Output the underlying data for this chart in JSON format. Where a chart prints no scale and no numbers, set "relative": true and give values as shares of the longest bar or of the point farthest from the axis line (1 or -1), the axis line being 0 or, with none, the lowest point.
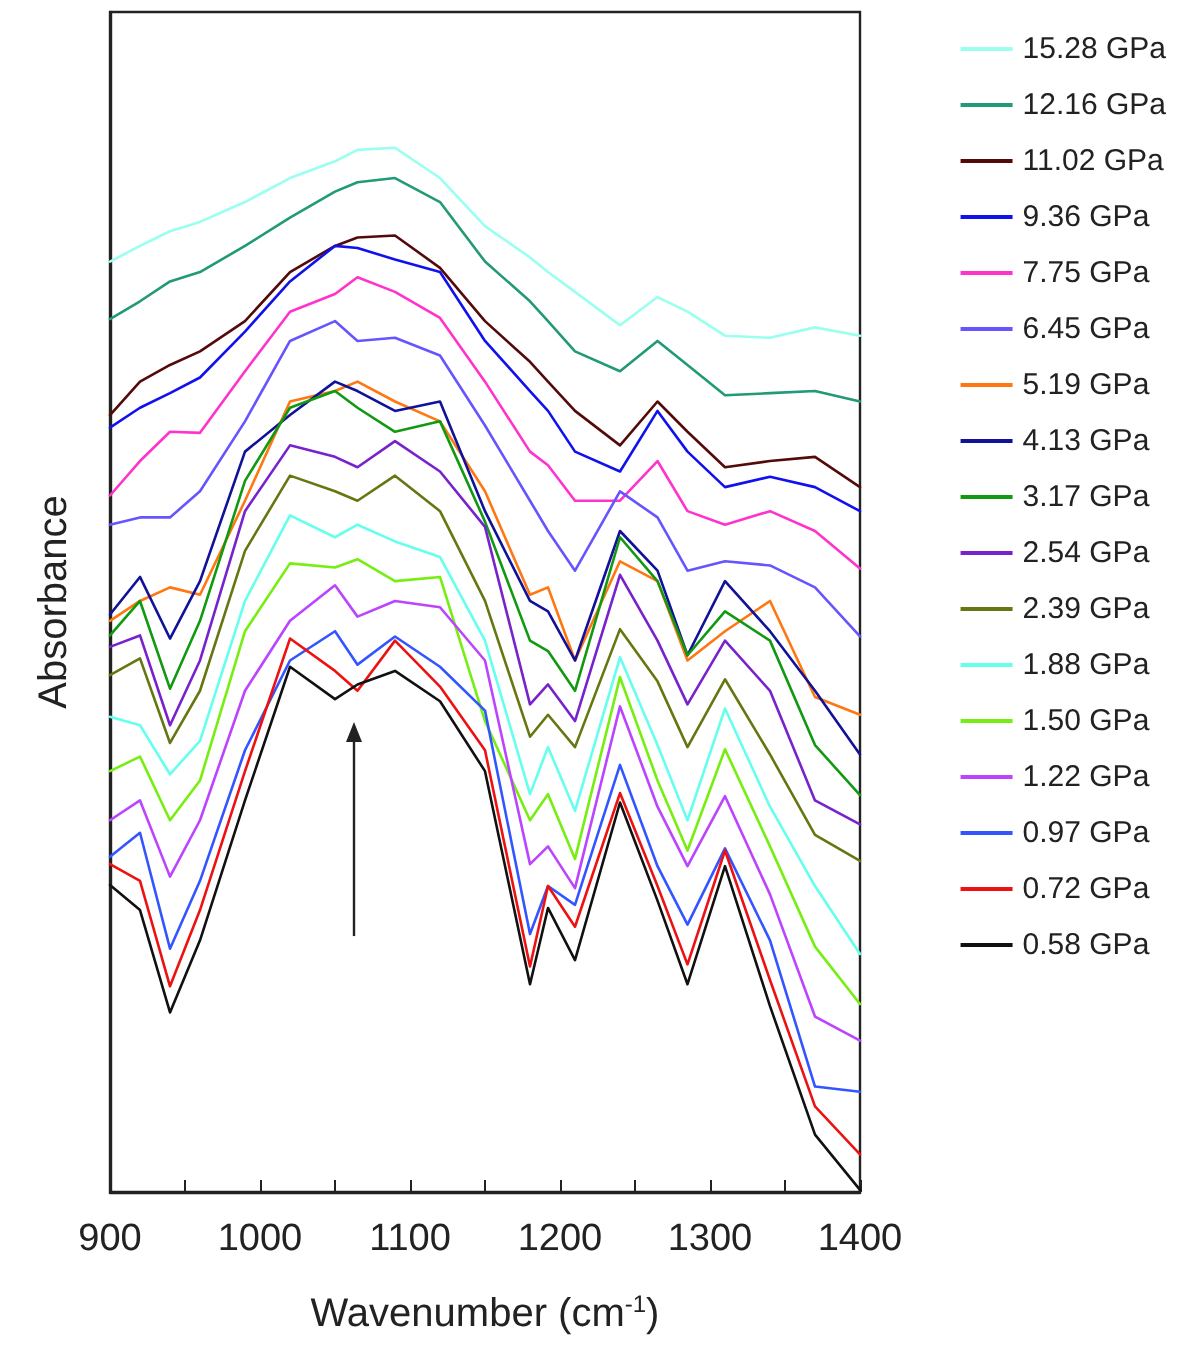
{
  "chart_data": {
    "type": "line",
    "relative": true,
    "xlabel": "Wavenumber (cm$^{-1}$)",
    "ylabel": "Absorbance",
    "legend": "right",
    "grid": false,
    "marker": "none",
    "line_style": "solid",
    "xlim": [
      900,
      1400
    ],
    "xticks": [
      900,
      {
        "value": 950,
        "label": null
      },
      1000,
      {
        "value": 1050,
        "label": null
      },
      1100,
      {
        "value": 1150,
        "label": null
      },
      1200,
      {
        "value": 1250,
        "label": null
      },
      1300,
      {
        "value": 1350,
        "label": null
      },
      1400
    ],
    "x": [
      900,
      920,
      940,
      960,
      990,
      1020,
      1050,
      1065,
      1090,
      1120,
      1150,
      1180,
      1192,
      1210,
      1240,
      1265,
      1285,
      1310,
      1340,
      1370,
      1400
    ],
    "series": [
      {
        "name": "15.28 GPa",
        "color": "#99ffee",
        "values": [
          0.891,
          0.906,
          0.92,
          0.929,
          0.948,
          0.971,
          0.987,
          0.998,
          1,
          0.971,
          0.925,
          0.895,
          0.881,
          0.862,
          0.83,
          0.857,
          0.843,
          0.82,
          0.818,
          0.828,
          0.82
        ]
      },
      {
        "name": "12.16 GPa",
        "color": "#229977",
        "values": [
          0.836,
          0.853,
          0.872,
          0.881,
          0.906,
          0.933,
          0.958,
          0.967,
          0.971,
          0.948,
          0.891,
          0.853,
          0.834,
          0.805,
          0.786,
          0.815,
          0.792,
          0.763,
          0.765,
          0.767,
          0.757
        ]
      },
      {
        "name": "11.02 GPa",
        "color": "#550a0a",
        "values": [
          0.744,
          0.776,
          0.792,
          0.805,
          0.834,
          0.881,
          0.906,
          0.914,
          0.916,
          0.885,
          0.834,
          0.795,
          0.776,
          0.748,
          0.715,
          0.757,
          0.728,
          0.694,
          0.7,
          0.704,
          0.675
        ]
      },
      {
        "name": "9.36 GPa",
        "color": "#1111ee",
        "values": [
          0.732,
          0.751,
          0.765,
          0.78,
          0.824,
          0.872,
          0.906,
          0.904,
          0.893,
          0.881,
          0.815,
          0.767,
          0.748,
          0.709,
          0.69,
          0.748,
          0.709,
          0.675,
          0.685,
          0.675,
          0.652
        ]
      },
      {
        "name": "7.75 GPa",
        "color": "#ff33cc",
        "values": [
          0.667,
          0.7,
          0.728,
          0.727,
          0.786,
          0.843,
          0.86,
          0.876,
          0.862,
          0.837,
          0.776,
          0.709,
          0.696,
          0.662,
          0.662,
          0.7,
          0.652,
          0.639,
          0.652,
          0.633,
          0.597
        ]
      },
      {
        "name": "6.45 GPa",
        "color": "#6655ff",
        "values": [
          0.639,
          0.646,
          0.646,
          0.671,
          0.738,
          0.815,
          0.834,
          0.815,
          0.818,
          0.801,
          0.734,
          0.662,
          0.633,
          0.595,
          0.671,
          0.646,
          0.595,
          0.604,
          0.6,
          0.579,
          0.532
        ]
      },
      {
        "name": "5.19 GPa",
        "color": "#ff7711",
        "values": [
          0.547,
          0.566,
          0.579,
          0.572,
          0.662,
          0.757,
          0.767,
          0.776,
          0.757,
          0.738,
          0.671,
          0.572,
          0.579,
          0.509,
          0.604,
          0.585,
          0.509,
          0.537,
          0.566,
          0.474,
          0.457
        ]
      },
      {
        "name": "4.13 GPa",
        "color": "#111199",
        "values": [
          0.553,
          0.589,
          0.53,
          0.585,
          0.709,
          0.744,
          0.776,
          0.767,
          0.748,
          0.757,
          0.652,
          0.566,
          0.556,
          0.509,
          0.633,
          0.595,
          0.514,
          0.585,
          0.537,
          0.48,
          0.419
        ]
      },
      {
        "name": "3.17 GPa",
        "color": "#119911",
        "values": [
          0.533,
          0.566,
          0.482,
          0.547,
          0.681,
          0.751,
          0.767,
          0.751,
          0.728,
          0.738,
          0.642,
          0.528,
          0.518,
          0.48,
          0.627,
          0.585,
          0.514,
          0.556,
          0.528,
          0.428,
          0.38
        ]
      },
      {
        "name": "2.54 GPa",
        "color": "#7722cc",
        "values": [
          0.522,
          0.533,
          0.447,
          0.509,
          0.652,
          0.715,
          0.704,
          0.694,
          0.719,
          0.69,
          0.637,
          0.467,
          0.486,
          0.451,
          0.591,
          0.528,
          0.467,
          0.528,
          0.48,
          0.375,
          0.352
        ]
      },
      {
        "name": "2.39 GPa",
        "color": "#667711",
        "values": [
          0.495,
          0.511,
          0.43,
          0.48,
          0.614,
          0.686,
          0.671,
          0.662,
          0.686,
          0.652,
          0.566,
          0.436,
          0.457,
          0.426,
          0.539,
          0.489,
          0.426,
          0.491,
          0.419,
          0.342,
          0.317
        ]
      },
      {
        "name": "1.88 GPa",
        "color": "#66ffee",
        "values": [
          0.455,
          0.447,
          0.4,
          0.432,
          0.566,
          0.648,
          0.627,
          0.639,
          0.623,
          0.608,
          0.528,
          0.381,
          0.426,
          0.365,
          0.512,
          0.428,
          0.356,
          0.463,
          0.369,
          0.293,
          0.228
        ]
      },
      {
        "name": "1.50 GPa",
        "color": "#77ee11",
        "values": [
          0.403,
          0.417,
          0.356,
          0.394,
          0.537,
          0.602,
          0.598,
          0.606,
          0.585,
          0.589,
          0.451,
          0.356,
          0.381,
          0.319,
          0.493,
          0.394,
          0.327,
          0.424,
          0.331,
          0.235,
          0.18
        ]
      },
      {
        "name": "1.22 GPa",
        "color": "#bb44ff",
        "values": [
          0.356,
          0.375,
          0.302,
          0.356,
          0.48,
          0.547,
          0.581,
          0.551,
          0.566,
          0.56,
          0.509,
          0.314,
          0.331,
          0.291,
          0.465,
          0.369,
          0.312,
          0.379,
          0.285,
          0.168,
          0.145
        ]
      },
      {
        "name": "0.97 GPa",
        "color": "#3355ff",
        "values": [
          0.321,
          0.344,
          0.233,
          0.298,
          0.423,
          0.509,
          0.537,
          0.505,
          0.532,
          0.503,
          0.461,
          0.247,
          0.293,
          0.275,
          0.409,
          0.312,
          0.256,
          0.329,
          0.241,
          0.101,
          0.096
        ]
      },
      {
        "name": "0.72 GPa",
        "color": "#ee1111",
        "values": [
          0.314,
          0.298,
          0.197,
          0.27,
          0.403,
          0.53,
          0.499,
          0.48,
          0.528,
          0.484,
          0.423,
          0.216,
          0.293,
          0.254,
          0.382,
          0.293,
          0.218,
          0.327,
          0.203,
          0.082,
          0.036
        ]
      },
      {
        "name": "0.58 GPa",
        "color": "#111111",
        "values": [
          0.294,
          0.27,
          0.172,
          0.241,
          0.375,
          0.503,
          0.472,
          0.486,
          0.499,
          0.47,
          0.403,
          0.199,
          0.272,
          0.222,
          0.373,
          0.279,
          0.199,
          0.312,
          0.178,
          0.055,
          0.002
        ]
      }
    ]
  }
}
